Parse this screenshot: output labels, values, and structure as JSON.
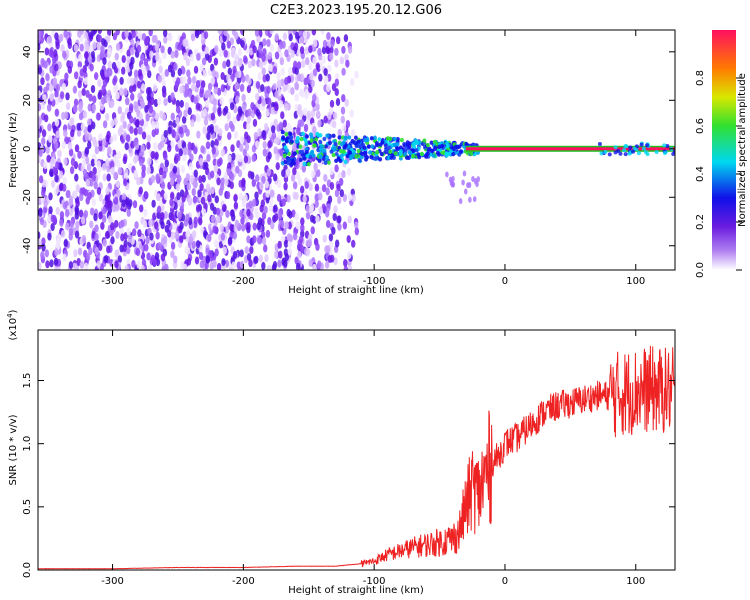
{
  "title": "C2E3.2023.195.20.12.G06",
  "colors": {
    "snr_line": "#ee2222",
    "frame": "#000000"
  },
  "chart_data": [
    {
      "type": "heatmap",
      "title": "",
      "xlabel": "Height of straight line (km)",
      "ylabel": "Frequency (Hz)",
      "xlim": [
        -357,
        130
      ],
      "ylim": [
        -50,
        49
      ],
      "x_ticks": [
        "-300",
        "-200",
        "-100",
        "0",
        "100"
      ],
      "y_ticks": [
        "-40",
        "-20",
        "0",
        "20",
        "40"
      ],
      "colorbar": {
        "label": "Normalized spectral amplitude",
        "range": [
          0,
          1
        ],
        "ticks": [
          "0.0",
          "0.2",
          "0.4",
          "0.6",
          "0.8"
        ]
      }
    },
    {
      "type": "line",
      "title": "",
      "xlabel": "Height of straight line (km)",
      "ylabel": "SNR (10 * v/v)",
      "scale_note": "(x10",
      "scale_exp": "4",
      "scale_close": ")",
      "xlim": [
        -357,
        130
      ],
      "ylim": [
        0,
        1.9
      ],
      "x_ticks": [
        "-300",
        "-200",
        "-100",
        "0",
        "100"
      ],
      "y_ticks": [
        "0.0",
        "0.5",
        "1.0",
        "1.5"
      ],
      "series": [
        {
          "x": [
            -357,
            -300,
            -250,
            -200,
            -160,
            -130,
            -110,
            -100,
            -90,
            -80,
            -70,
            -60,
            -50,
            -40,
            -35,
            -30,
            -25,
            -20,
            -15,
            -10,
            -5,
            0,
            10,
            20,
            30,
            40,
            50,
            60,
            70,
            80,
            90,
            100,
            110,
            120,
            130
          ],
          "y": [
            0.01,
            0.01,
            0.02,
            0.02,
            0.03,
            0.03,
            0.05,
            0.07,
            0.12,
            0.15,
            0.18,
            0.2,
            0.22,
            0.25,
            0.3,
            0.5,
            0.65,
            0.6,
            0.75,
            0.85,
            0.9,
            1.0,
            1.05,
            1.15,
            1.25,
            1.3,
            1.32,
            1.35,
            1.38,
            1.38,
            1.4,
            1.42,
            1.43,
            1.42,
            1.42
          ]
        }
      ]
    }
  ]
}
